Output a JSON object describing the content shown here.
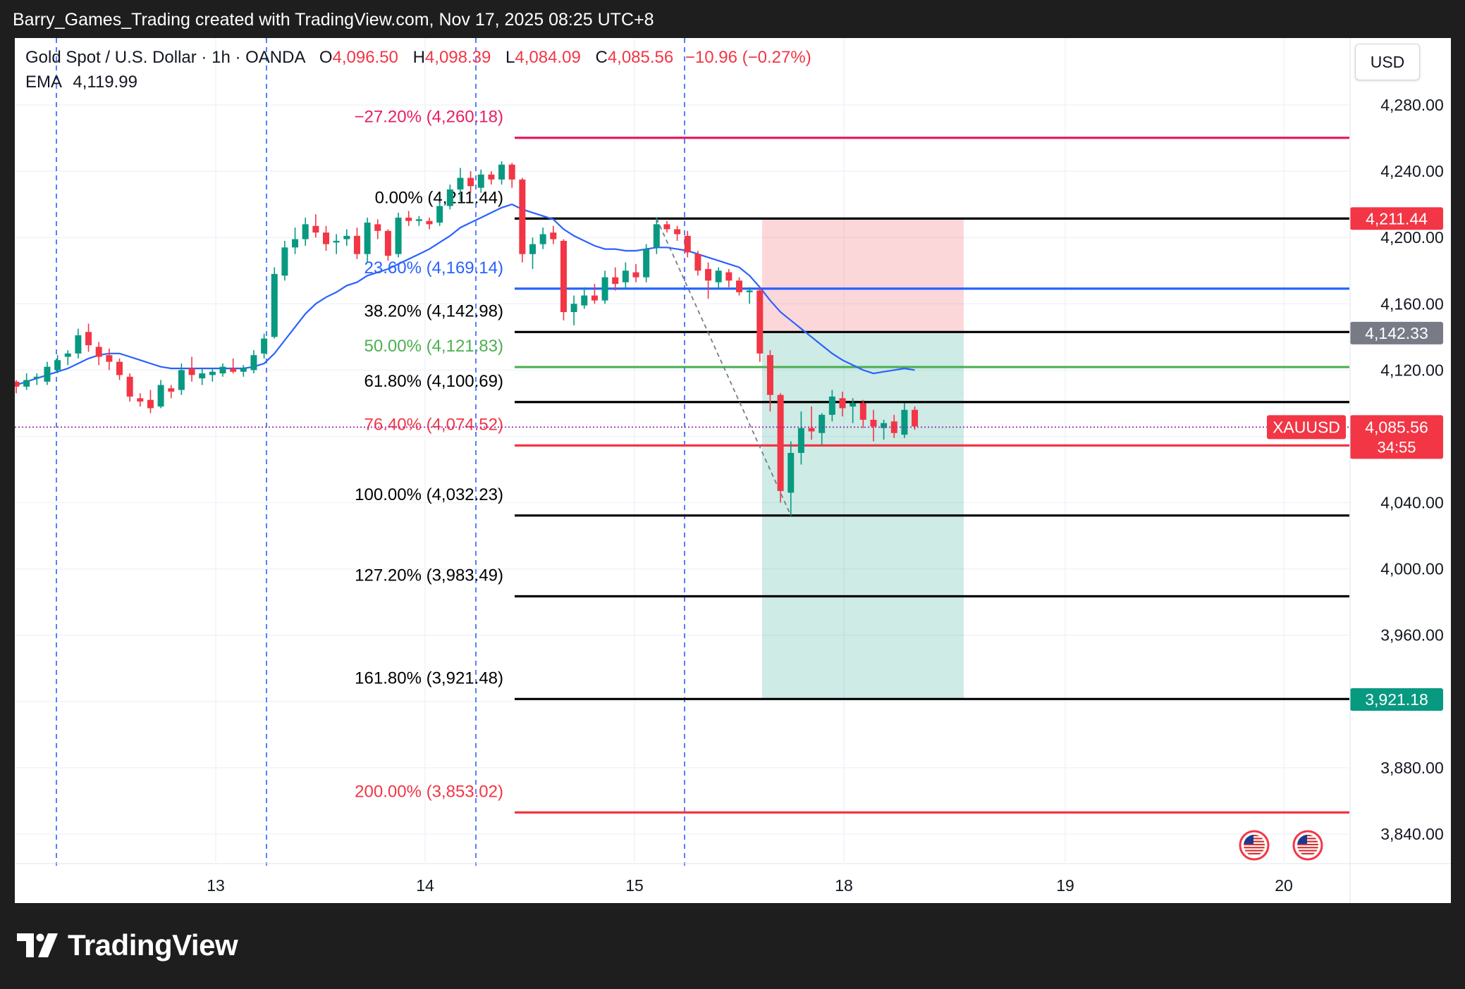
{
  "credit": "Barry_Games_Trading created with TradingView.com, Nov 17, 2025 08:25 UTC+8",
  "header": {
    "symbol": "Gold Spot / U.S. Dollar · 1h · OANDA",
    "o_label": "O",
    "o": "4,096.50",
    "h_label": "H",
    "h": "4,098.39",
    "l_label": "L",
    "l": "4,084.09",
    "c_label": "C",
    "c": "4,085.56",
    "change": "−10.96 (−0.27%)",
    "ema_label": "EMA",
    "ema": "4,119.99"
  },
  "currency_button": "USD",
  "brand": {
    "name": "TradingView",
    "logo": "tradingview-logo-icon"
  },
  "events_icons": [
    "us-flag-icon",
    "us-flag-icon"
  ],
  "colors": {
    "up": "#089981",
    "down": "#f23645",
    "ema": "#2962ff"
  },
  "chart_data": {
    "type": "candlestick",
    "ylim": [
      3820,
      4305
    ],
    "y_ticks": [
      "4,280.00",
      "4,240.00",
      "4,200.00",
      "4,160.00",
      "4,120.00",
      "4,040.00",
      "4,000.00",
      "3,960.00",
      "3,880.00",
      "3,840.00"
    ],
    "y_tick_values": [
      4280,
      4240,
      4200,
      4160,
      4120,
      4040,
      4000,
      3960,
      3880,
      3840
    ],
    "x_ticks": [
      "13",
      "14",
      "15",
      "18",
      "19",
      "20"
    ],
    "fib_levels": [
      {
        "label": "−27.20% (4,260.18)",
        "value": 4260.18,
        "color": "#e91e63"
      },
      {
        "label": "0.00% (4,211.44)",
        "value": 4211.44,
        "color": "#000000"
      },
      {
        "label": "23.60% (4,169.14)",
        "value": 4169.14,
        "color": "#2962ff"
      },
      {
        "label": "38.20% (4,142.98)",
        "value": 4142.98,
        "color": "#000000"
      },
      {
        "label": "50.00% (4,121.83)",
        "value": 4121.83,
        "color": "#4caf50"
      },
      {
        "label": "61.80% (4,100.69)",
        "value": 4100.69,
        "color": "#000000"
      },
      {
        "label": "76.40% (4,074.52)",
        "value": 4074.52,
        "color": "#f23645"
      },
      {
        "label": "100.00% (4,032.23)",
        "value": 4032.23,
        "color": "#000000"
      },
      {
        "label": "127.20% (3,983.49)",
        "value": 3983.49,
        "color": "#000000"
      },
      {
        "label": "161.80% (3,921.48)",
        "value": 3921.48,
        "color": "#000000"
      },
      {
        "label": "200.00% (3,853.02)",
        "value": 3853.02,
        "color": "#f23645"
      }
    ],
    "position": {
      "type": "short",
      "stop": 4211.44,
      "entry": 4142.33,
      "target": 3921.18
    },
    "price_labels": [
      {
        "text": "4,211.44",
        "value": 4211.44,
        "color": "#f23645"
      },
      {
        "text": "4,142.33",
        "value": 4142.33,
        "color": "#787b86"
      },
      {
        "text": "3,921.18",
        "value": 3921.18,
        "color": "#089981"
      }
    ],
    "current": {
      "symbol": "XAUUSD",
      "price": "4,085.56",
      "value": 4085.56,
      "countdown": "34:55"
    },
    "candles": [
      {
        "t": 0.0,
        "o": 4113,
        "h": 4114,
        "l": 4106,
        "c": 4110
      },
      {
        "t": 0.5,
        "o": 4110,
        "h": 4118,
        "l": 4108,
        "c": 4114
      },
      {
        "t": 1.0,
        "o": 4115,
        "h": 4118,
        "l": 4111,
        "c": 4116
      },
      {
        "t": 1.5,
        "o": 4113,
        "h": 4125,
        "l": 4111,
        "c": 4122
      },
      {
        "t": 2.0,
        "o": 4120,
        "h": 4129,
        "l": 4118,
        "c": 4126
      },
      {
        "t": 2.5,
        "o": 4128,
        "h": 4132,
        "l": 4123,
        "c": 4130
      },
      {
        "t": 3.0,
        "o": 4130,
        "h": 4145,
        "l": 4127,
        "c": 4141
      },
      {
        "t": 3.5,
        "o": 4143,
        "h": 4148,
        "l": 4131,
        "c": 4135
      },
      {
        "t": 4.0,
        "o": 4134,
        "h": 4137,
        "l": 4123,
        "c": 4128
      },
      {
        "t": 4.5,
        "o": 4129,
        "h": 4133,
        "l": 4120,
        "c": 4125
      },
      {
        "t": 5.0,
        "o": 4125,
        "h": 4127,
        "l": 4114,
        "c": 4117
      },
      {
        "t": 5.5,
        "o": 4116,
        "h": 4118,
        "l": 4101,
        "c": 4104
      },
      {
        "t": 6.0,
        "o": 4103,
        "h": 4106,
        "l": 4098,
        "c": 4101
      },
      {
        "t": 6.5,
        "o": 4102,
        "h": 4108,
        "l": 4094,
        "c": 4097
      },
      {
        "t": 7.0,
        "o": 4098,
        "h": 4114,
        "l": 4097,
        "c": 4111
      },
      {
        "t": 7.5,
        "o": 4109,
        "h": 4111,
        "l": 4103,
        "c": 4107
      },
      {
        "t": 8.0,
        "o": 4108,
        "h": 4124,
        "l": 4105,
        "c": 4120
      },
      {
        "t": 8.5,
        "o": 4121,
        "h": 4128,
        "l": 4113,
        "c": 4117
      },
      {
        "t": 9.0,
        "o": 4115,
        "h": 4121,
        "l": 4111,
        "c": 4118
      },
      {
        "t": 9.5,
        "o": 4117,
        "h": 4121,
        "l": 4113,
        "c": 4119
      },
      {
        "t": 10.0,
        "o": 4118,
        "h": 4124,
        "l": 4116,
        "c": 4122
      },
      {
        "t": 10.5,
        "o": 4121,
        "h": 4127,
        "l": 4118,
        "c": 4119
      },
      {
        "t": 11.0,
        "o": 4119,
        "h": 4123,
        "l": 4116,
        "c": 4121
      },
      {
        "t": 11.5,
        "o": 4120,
        "h": 4132,
        "l": 4118,
        "c": 4129
      },
      {
        "t": 12.0,
        "o": 4130,
        "h": 4142,
        "l": 4127,
        "c": 4139
      },
      {
        "t": 12.5,
        "o": 4140,
        "h": 4182,
        "l": 4139,
        "c": 4178
      },
      {
        "t": 13.0,
        "o": 4177,
        "h": 4198,
        "l": 4174,
        "c": 4194
      },
      {
        "t": 13.5,
        "o": 4194,
        "h": 4206,
        "l": 4190,
        "c": 4199
      },
      {
        "t": 14.0,
        "o": 4199,
        "h": 4212,
        "l": 4195,
        "c": 4208
      },
      {
        "t": 14.5,
        "o": 4207,
        "h": 4214,
        "l": 4200,
        "c": 4203
      },
      {
        "t": 15.0,
        "o": 4203,
        "h": 4207,
        "l": 4192,
        "c": 4196
      },
      {
        "t": 15.5,
        "o": 4197,
        "h": 4202,
        "l": 4190,
        "c": 4198
      },
      {
        "t": 16.0,
        "o": 4199,
        "h": 4205,
        "l": 4195,
        "c": 4201
      },
      {
        "t": 16.5,
        "o": 4201,
        "h": 4206,
        "l": 4187,
        "c": 4190
      },
      {
        "t": 17.0,
        "o": 4190,
        "h": 4212,
        "l": 4185,
        "c": 4209
      },
      {
        "t": 17.5,
        "o": 4208,
        "h": 4211,
        "l": 4199,
        "c": 4204
      },
      {
        "t": 18.0,
        "o": 4204,
        "h": 4205,
        "l": 4186,
        "c": 4189
      },
      {
        "t": 18.5,
        "o": 4190,
        "h": 4215,
        "l": 4188,
        "c": 4212
      },
      {
        "t": 19.0,
        "o": 4212,
        "h": 4216,
        "l": 4207,
        "c": 4210
      },
      {
        "t": 19.5,
        "o": 4210,
        "h": 4213,
        "l": 4207,
        "c": 4211
      },
      {
        "t": 20.0,
        "o": 4210,
        "h": 4212,
        "l": 4205,
        "c": 4208
      },
      {
        "t": 20.5,
        "o": 4209,
        "h": 4222,
        "l": 4207,
        "c": 4219
      },
      {
        "t": 21.0,
        "o": 4219,
        "h": 4232,
        "l": 4217,
        "c": 4229
      },
      {
        "t": 21.5,
        "o": 4229,
        "h": 4242,
        "l": 4222,
        "c": 4236
      },
      {
        "t": 22.0,
        "o": 4236,
        "h": 4240,
        "l": 4227,
        "c": 4231
      },
      {
        "t": 22.5,
        "o": 4230,
        "h": 4241,
        "l": 4227,
        "c": 4238
      },
      {
        "t": 23.0,
        "o": 4238,
        "h": 4240,
        "l": 4232,
        "c": 4235
      },
      {
        "t": 23.5,
        "o": 4235,
        "h": 4246,
        "l": 4232,
        "c": 4244
      },
      {
        "t": 24.0,
        "o": 4244,
        "h": 4245,
        "l": 4230,
        "c": 4235
      },
      {
        "t": 24.5,
        "o": 4235,
        "h": 4236,
        "l": 4185,
        "c": 4190
      },
      {
        "t": 25.0,
        "o": 4190,
        "h": 4200,
        "l": 4181,
        "c": 4196
      },
      {
        "t": 25.5,
        "o": 4196,
        "h": 4206,
        "l": 4193,
        "c": 4202
      },
      {
        "t": 26.0,
        "o": 4203,
        "h": 4207,
        "l": 4196,
        "c": 4199
      },
      {
        "t": 26.5,
        "o": 4198,
        "h": 4199,
        "l": 4150,
        "c": 4155
      },
      {
        "t": 27.0,
        "o": 4155,
        "h": 4165,
        "l": 4147,
        "c": 4160
      },
      {
        "t": 27.5,
        "o": 4159,
        "h": 4170,
        "l": 4157,
        "c": 4165
      },
      {
        "t": 28.0,
        "o": 4165,
        "h": 4172,
        "l": 4160,
        "c": 4162
      },
      {
        "t": 28.5,
        "o": 4162,
        "h": 4180,
        "l": 4160,
        "c": 4176
      },
      {
        "t": 29.0,
        "o": 4176,
        "h": 4182,
        "l": 4168,
        "c": 4172
      },
      {
        "t": 29.5,
        "o": 4173,
        "h": 4185,
        "l": 4169,
        "c": 4180
      },
      {
        "t": 30.0,
        "o": 4179,
        "h": 4184,
        "l": 4173,
        "c": 4176
      },
      {
        "t": 30.5,
        "o": 4176,
        "h": 4196,
        "l": 4173,
        "c": 4193
      },
      {
        "t": 31.0,
        "o": 4194,
        "h": 4212,
        "l": 4190,
        "c": 4208
      },
      {
        "t": 31.5,
        "o": 4208,
        "h": 4210,
        "l": 4203,
        "c": 4205
      },
      {
        "t": 32.0,
        "o": 4205,
        "h": 4207,
        "l": 4198,
        "c": 4202
      },
      {
        "t": 32.5,
        "o": 4201,
        "h": 4204,
        "l": 4188,
        "c": 4191
      },
      {
        "t": 33.0,
        "o": 4190,
        "h": 4192,
        "l": 4177,
        "c": 4180
      },
      {
        "t": 33.5,
        "o": 4181,
        "h": 4185,
        "l": 4163,
        "c": 4174
      },
      {
        "t": 34.0,
        "o": 4173,
        "h": 4182,
        "l": 4169,
        "c": 4180
      },
      {
        "t": 34.5,
        "o": 4179,
        "h": 4181,
        "l": 4170,
        "c": 4174
      },
      {
        "t": 35.0,
        "o": 4174,
        "h": 4176,
        "l": 4165,
        "c": 4167
      },
      {
        "t": 35.5,
        "o": 4167,
        "h": 4170,
        "l": 4160,
        "c": 4168
      },
      {
        "t": 36.0,
        "o": 4168,
        "h": 4170,
        "l": 4125,
        "c": 4130
      },
      {
        "t": 36.5,
        "o": 4129,
        "h": 4132,
        "l": 4095,
        "c": 4105
      },
      {
        "t": 37.0,
        "o": 4105,
        "h": 4106,
        "l": 4040,
        "c": 4047
      },
      {
        "t": 37.5,
        "o": 4046,
        "h": 4077,
        "l": 4032,
        "c": 4070
      },
      {
        "t": 38.0,
        "o": 4070,
        "h": 4095,
        "l": 4063,
        "c": 4085
      },
      {
        "t": 38.5,
        "o": 4085,
        "h": 4098,
        "l": 4078,
        "c": 4083
      },
      {
        "t": 39.0,
        "o": 4082,
        "h": 4094,
        "l": 4075,
        "c": 4093
      },
      {
        "t": 39.5,
        "o": 4093,
        "h": 4108,
        "l": 4089,
        "c": 4104
      },
      {
        "t": 40.0,
        "o": 4103,
        "h": 4107,
        "l": 4092,
        "c": 4097
      },
      {
        "t": 40.5,
        "o": 4098,
        "h": 4103,
        "l": 4088,
        "c": 4100
      },
      {
        "t": 41.0,
        "o": 4100,
        "h": 4102,
        "l": 4085,
        "c": 4090
      },
      {
        "t": 41.5,
        "o": 4090,
        "h": 4096,
        "l": 4077,
        "c": 4086
      },
      {
        "t": 42.0,
        "o": 4085,
        "h": 4090,
        "l": 4078,
        "c": 4088
      },
      {
        "t": 42.5,
        "o": 4089,
        "h": 4093,
        "l": 4079,
        "c": 4082
      },
      {
        "t": 43.0,
        "o": 4081,
        "h": 4100,
        "l": 4079,
        "c": 4096
      },
      {
        "t": 43.5,
        "o": 4096,
        "h": 4098,
        "l": 4084,
        "c": 4086
      }
    ],
    "ema_series": [
      4111,
      4113,
      4115,
      4117,
      4119,
      4121,
      4124,
      4127,
      4129,
      4130,
      4130,
      4128,
      4126,
      4124,
      4122,
      4121,
      4121,
      4121,
      4121,
      4121,
      4121,
      4121,
      4121,
      4122,
      4124,
      4130,
      4138,
      4146,
      4154,
      4160,
      4164,
      4167,
      4171,
      4173,
      4177,
      4179,
      4181,
      4184,
      4187,
      4190,
      4193,
      4197,
      4201,
      4206,
      4209,
      4212,
      4215,
      4218,
      4220,
      4217,
      4215,
      4213,
      4211,
      4205,
      4201,
      4198,
      4195,
      4193,
      4193,
      4192,
      4192,
      4193,
      4194,
      4194,
      4193,
      4192,
      4190,
      4188,
      4186,
      4184,
      4182,
      4177,
      4170,
      4162,
      4155,
      4150,
      4145,
      4140,
      4135,
      4130,
      4126,
      4123,
      4120,
      4118,
      4119,
      4120,
      4121,
      4120
    ]
  }
}
